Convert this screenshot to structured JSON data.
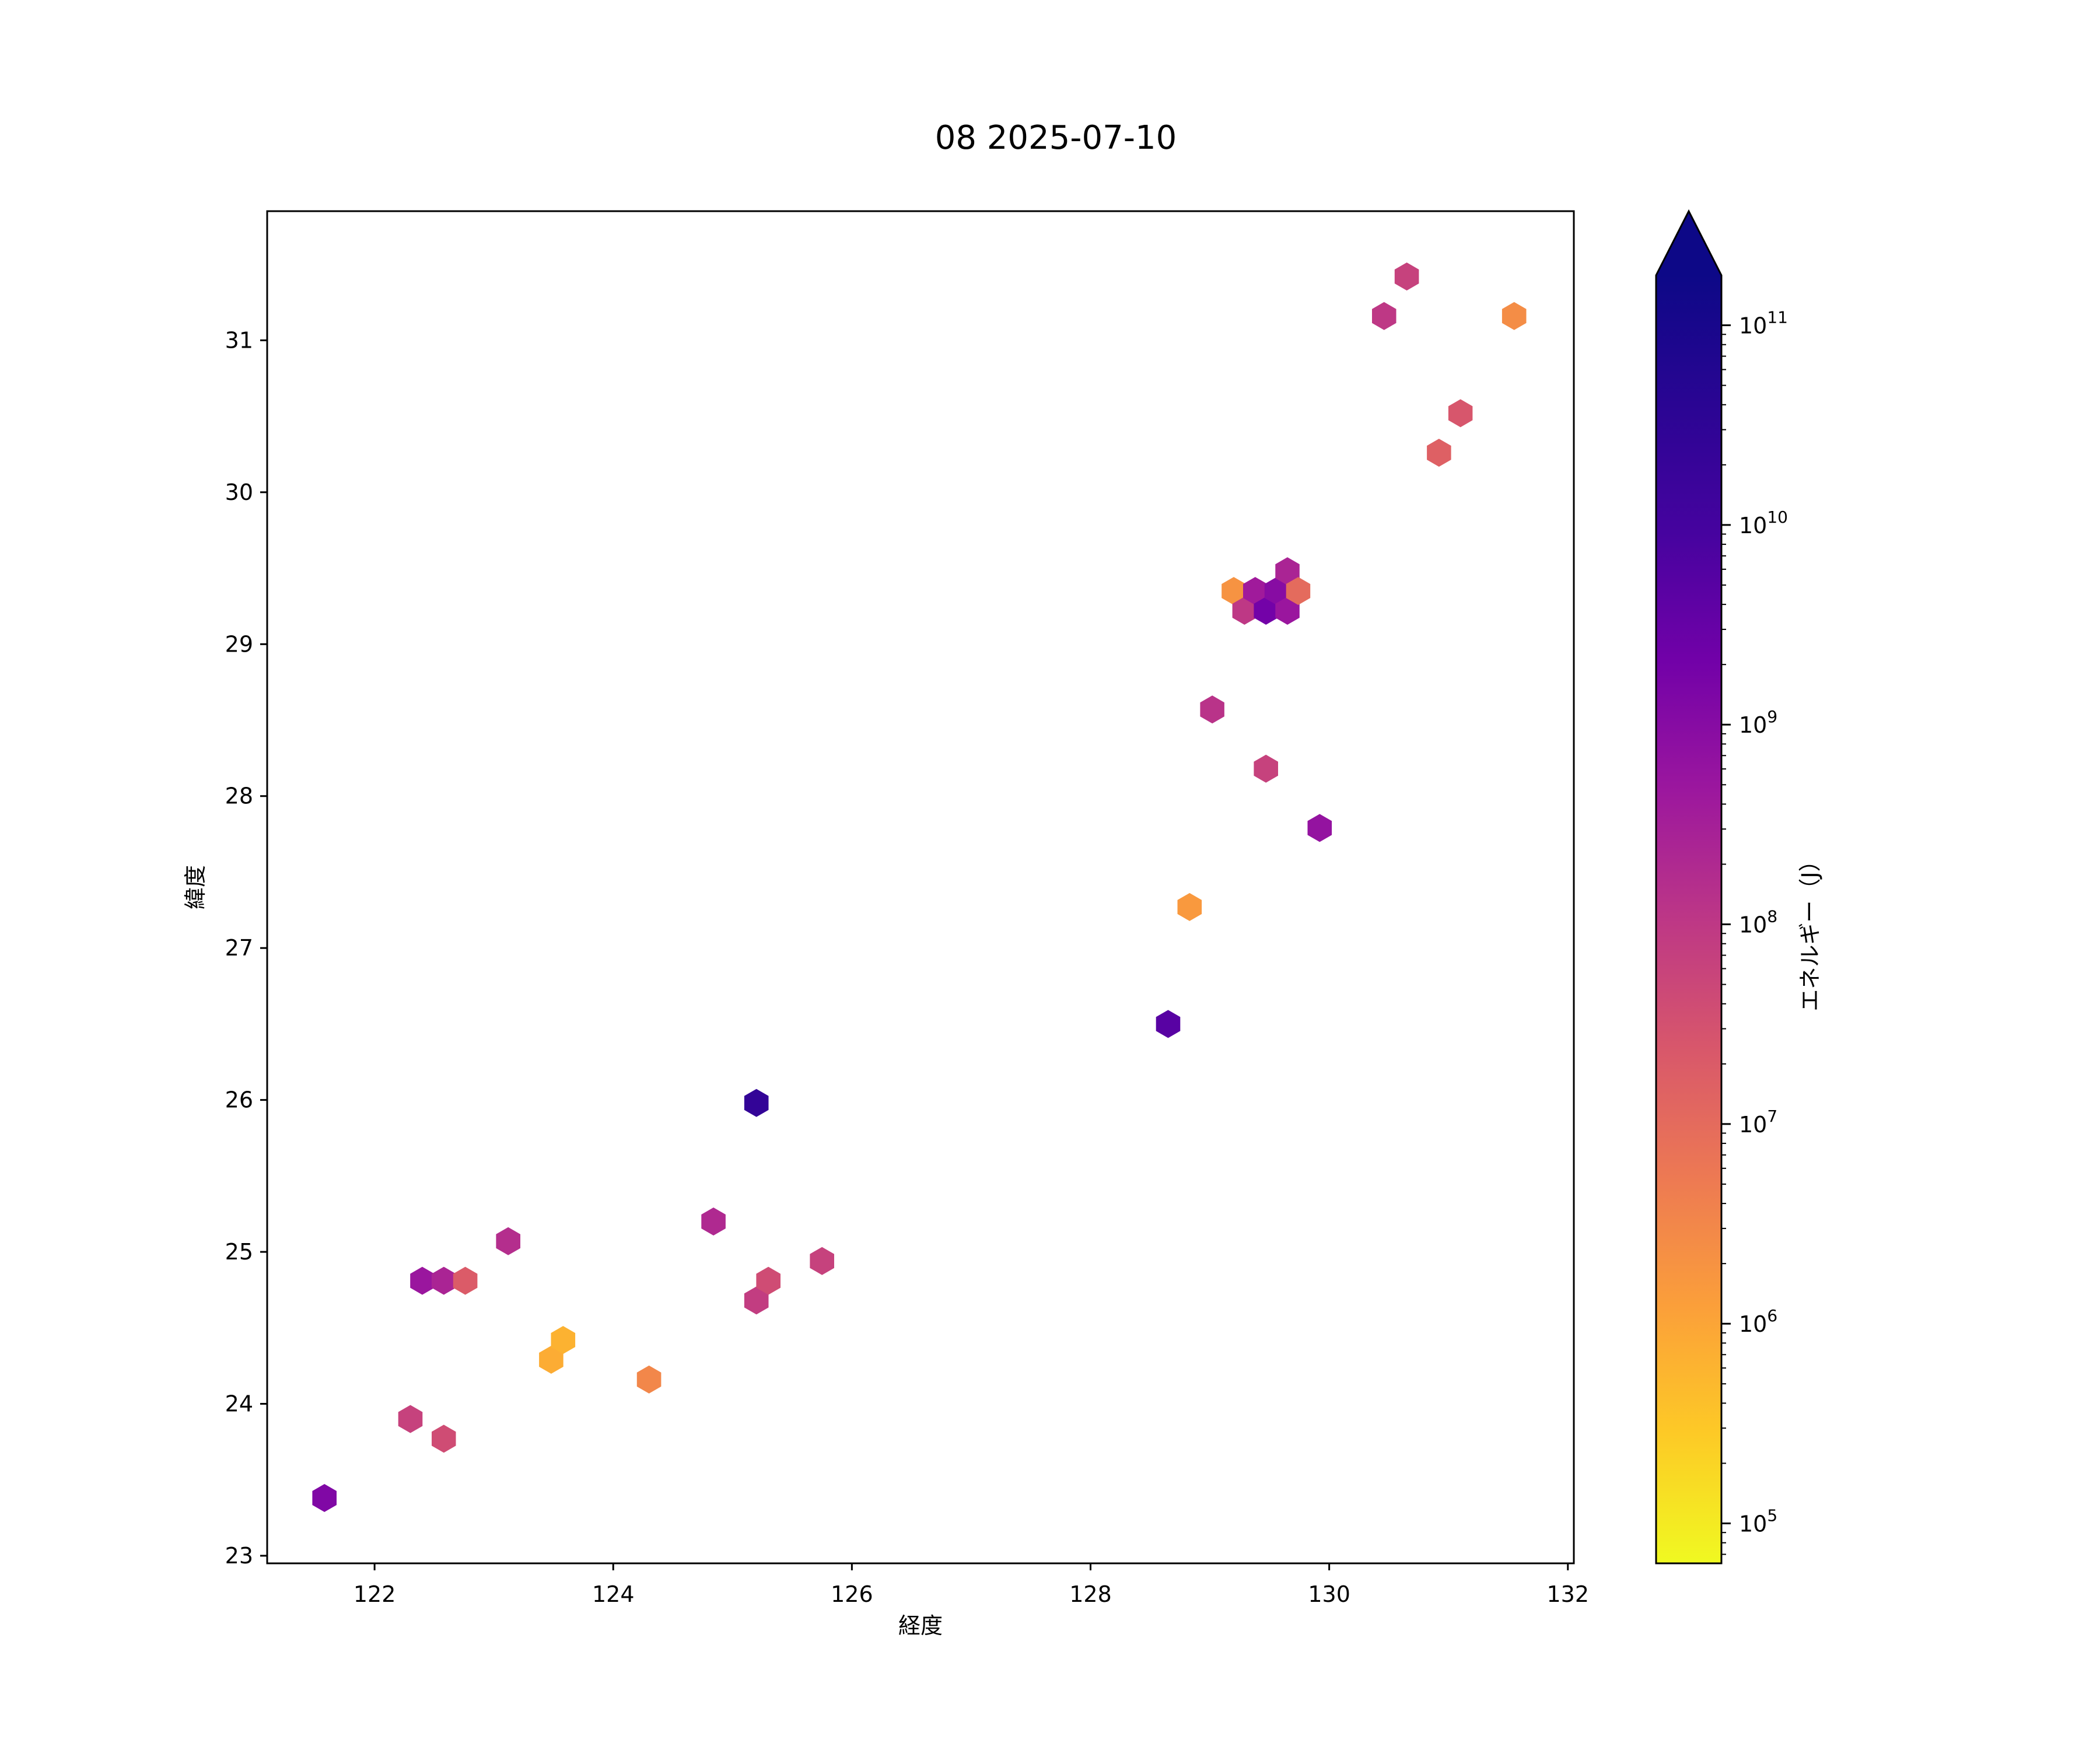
{
  "chart_data": {
    "type": "hexbin",
    "title": "08 2025-07-10",
    "xlabel": "経度",
    "ylabel": "緯度",
    "xlim": [
      121.1,
      132.05
    ],
    "ylim": [
      22.95,
      31.85
    ],
    "xticks": [
      122,
      124,
      126,
      128,
      130,
      132
    ],
    "yticks": [
      23,
      24,
      25,
      26,
      27,
      28,
      29,
      30,
      31
    ],
    "grid": false,
    "colorbar": {
      "label": "エネルギー（J）",
      "scale": "log",
      "colormap": "plasma_r",
      "range_log10": [
        4.8,
        11.25
      ],
      "extend": "max",
      "ticks": [
        {
          "base": "10",
          "exp": "5",
          "log10": 5
        },
        {
          "base": "10",
          "exp": "6",
          "log10": 6
        },
        {
          "base": "10",
          "exp": "7",
          "log10": 7
        },
        {
          "base": "10",
          "exp": "8",
          "log10": 8
        },
        {
          "base": "10",
          "exp": "9",
          "log10": 9
        },
        {
          "base": "10",
          "exp": "10",
          "log10": 10
        },
        {
          "base": "10",
          "exp": "11",
          "log10": 11
        }
      ]
    },
    "points": [
      {
        "lon": 121.58,
        "lat": 23.38,
        "log10_energy": 9.1
      },
      {
        "lon": 122.3,
        "lat": 23.9,
        "log10_energy": 7.8
      },
      {
        "lon": 122.58,
        "lat": 23.77,
        "log10_energy": 7.6
      },
      {
        "lon": 122.4,
        "lat": 24.81,
        "log10_energy": 8.7
      },
      {
        "lon": 122.58,
        "lat": 24.81,
        "log10_energy": 8.4
      },
      {
        "lon": 122.76,
        "lat": 24.81,
        "log10_energy": 7.3
      },
      {
        "lon": 123.12,
        "lat": 25.07,
        "log10_energy": 8.2
      },
      {
        "lon": 123.48,
        "lat": 24.29,
        "log10_energy": 5.9
      },
      {
        "lon": 123.58,
        "lat": 24.42,
        "log10_energy": 5.8
      },
      {
        "lon": 124.3,
        "lat": 24.16,
        "log10_energy": 6.5
      },
      {
        "lon": 124.84,
        "lat": 25.2,
        "log10_energy": 8.3
      },
      {
        "lon": 125.2,
        "lat": 24.68,
        "log10_energy": 7.9
      },
      {
        "lon": 125.3,
        "lat": 24.81,
        "log10_energy": 7.6
      },
      {
        "lon": 125.2,
        "lat": 25.98,
        "log10_energy": 10.4
      },
      {
        "lon": 125.75,
        "lat": 24.94,
        "log10_energy": 7.8
      },
      {
        "lon": 128.65,
        "lat": 26.5,
        "log10_energy": 9.7
      },
      {
        "lon": 128.83,
        "lat": 27.27,
        "log10_energy": 6.2
      },
      {
        "lon": 129.02,
        "lat": 28.57,
        "log10_energy": 8.1
      },
      {
        "lon": 129.2,
        "lat": 29.35,
        "log10_energy": 6.3
      },
      {
        "lon": 129.29,
        "lat": 29.22,
        "log10_energy": 8.0
      },
      {
        "lon": 129.38,
        "lat": 29.35,
        "log10_energy": 8.6
      },
      {
        "lon": 129.47,
        "lat": 29.22,
        "log10_energy": 9.3
      },
      {
        "lon": 129.56,
        "lat": 29.35,
        "log10_energy": 9.0
      },
      {
        "lon": 129.65,
        "lat": 29.22,
        "log10_energy": 8.7
      },
      {
        "lon": 129.65,
        "lat": 29.48,
        "log10_energy": 8.4
      },
      {
        "lon": 129.74,
        "lat": 29.35,
        "log10_energy": 7.0
      },
      {
        "lon": 129.47,
        "lat": 28.18,
        "log10_energy": 7.8
      },
      {
        "lon": 129.92,
        "lat": 27.79,
        "log10_energy": 8.8
      },
      {
        "lon": 130.46,
        "lat": 31.16,
        "log10_energy": 8.0
      },
      {
        "lon": 130.65,
        "lat": 31.42,
        "log10_energy": 7.8
      },
      {
        "lon": 130.92,
        "lat": 30.26,
        "log10_energy": 7.2
      },
      {
        "lon": 131.1,
        "lat": 30.52,
        "log10_energy": 7.4
      },
      {
        "lon": 131.55,
        "lat": 31.16,
        "log10_energy": 6.4
      }
    ]
  }
}
